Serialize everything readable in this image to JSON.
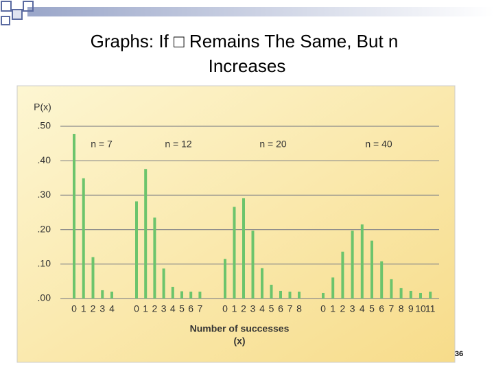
{
  "header": {
    "title_line1": "Graphs: If □ Remains The Same, But n",
    "title_line2": "Increases",
    "page_number": "36"
  },
  "chart_data": {
    "type": "bar",
    "ylabel": "P(x)",
    "xlabel": [
      "Number of successes",
      "(x)"
    ],
    "color": "#6cc46c",
    "ylim": [
      0,
      0.5
    ],
    "yticks": [
      {
        "value": 0,
        "label": ".00"
      },
      {
        "value": 0.1,
        "label": ".10"
      },
      {
        "value": 0.2,
        "label": ".20"
      },
      {
        "value": 0.3,
        "label": ".30"
      },
      {
        "value": 0.4,
        "label": ".40"
      },
      {
        "value": 0.5,
        "label": ".50"
      }
    ],
    "grid": true,
    "series": [
      {
        "name": "n = 7",
        "categories": [
          "0",
          "1",
          "2",
          "3",
          "4"
        ],
        "values": [
          0.478,
          0.349,
          0.12,
          0.024,
          0.02
        ]
      },
      {
        "name": "n = 12",
        "categories": [
          "0",
          "1",
          "2",
          "3",
          "4",
          "5",
          "6",
          "7"
        ],
        "values": [
          0.282,
          0.376,
          0.235,
          0.087,
          0.034,
          0.021,
          0.02,
          0.02
        ]
      },
      {
        "name": "n = 20",
        "categories": [
          "0",
          "1",
          "2",
          "3",
          "4",
          "5",
          "6",
          "7",
          "8"
        ],
        "values": [
          0.115,
          0.266,
          0.291,
          0.197,
          0.088,
          0.04,
          0.022,
          0.02,
          0.02
        ]
      },
      {
        "name": "n = 40",
        "categories": [
          "0",
          "1",
          "2",
          "3",
          "4",
          "5",
          "6",
          "7",
          "8",
          "9",
          "10",
          "11"
        ],
        "values": [
          0.016,
          0.061,
          0.136,
          0.197,
          0.215,
          0.168,
          0.108,
          0.056,
          0.03,
          0.022,
          0.016,
          0.02
        ]
      }
    ]
  }
}
